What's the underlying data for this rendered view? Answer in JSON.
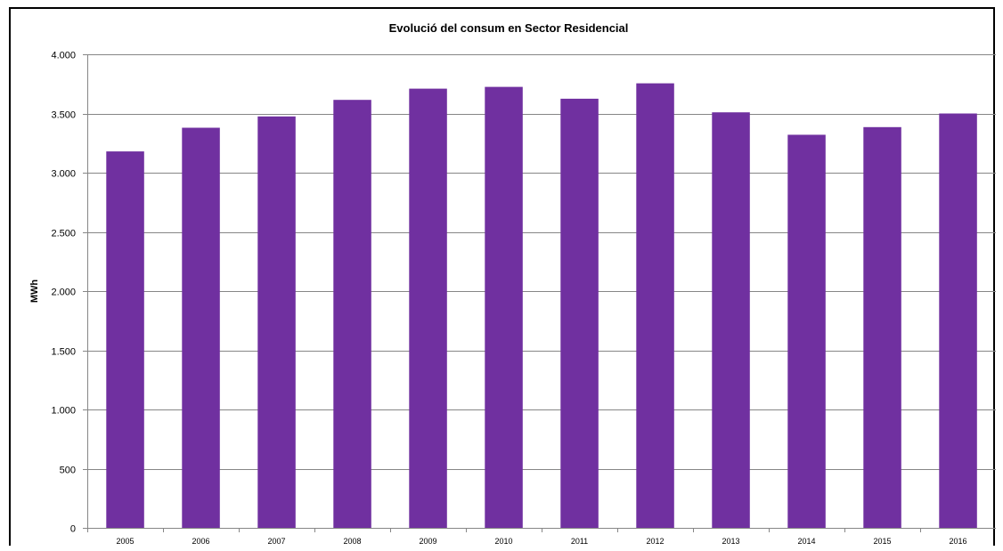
{
  "chart_data": {
    "type": "bar",
    "title": "Evolució del consum  en Sector Residencial",
    "xlabel": "",
    "ylabel": "MWh",
    "categories": [
      "2005",
      "2006",
      "2007",
      "2008",
      "2009",
      "2010",
      "2011",
      "2012",
      "2013",
      "2014",
      "2015",
      "2016"
    ],
    "values": [
      3180,
      3380,
      3475,
      3615,
      3710,
      3725,
      3625,
      3755,
      3510,
      3320,
      3385,
      3500
    ],
    "ylim": [
      0,
      4000
    ],
    "yticks": [
      0,
      500,
      1000,
      1500,
      2000,
      2500,
      3000,
      3500,
      4000
    ],
    "ytick_labels": [
      "0",
      "500",
      "1.000",
      "1.500",
      "2.000",
      "2.500",
      "3.000",
      "3.500",
      "4.000"
    ],
    "grid": "horizontal",
    "legend": "none",
    "bar_color": "#7030A0",
    "grid_color": "#868686"
  }
}
